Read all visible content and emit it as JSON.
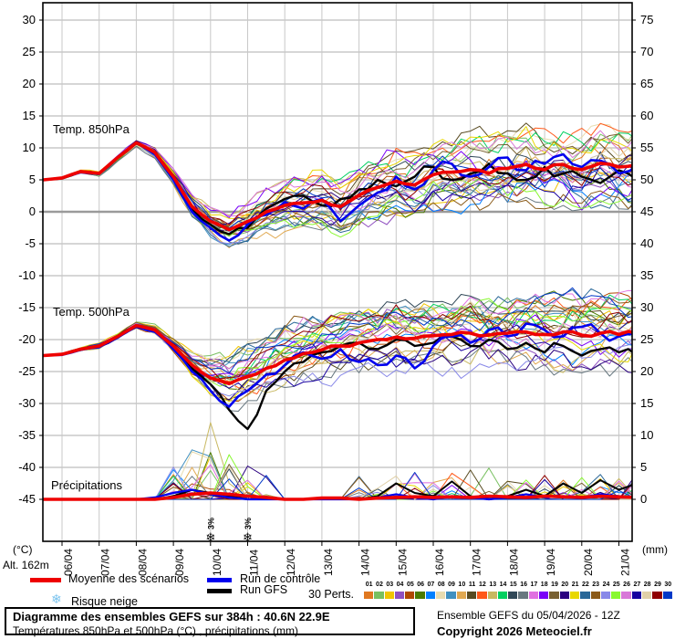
{
  "axes": {
    "left_unit": "(°C)",
    "right_unit": "(mm)",
    "alt_label": "Alt. 162m",
    "left_ticks": [
      30,
      25,
      20,
      15,
      10,
      5,
      0,
      -5,
      -10,
      -15,
      -20,
      -25,
      -30,
      -35,
      -40,
      -45
    ],
    "right_ticks": [
      75,
      70,
      65,
      60,
      55,
      50,
      45,
      40,
      35,
      30,
      25,
      20,
      15,
      10,
      5,
      0
    ],
    "x_dates": [
      "06/04",
      "07/04",
      "08/04",
      "09/04",
      "10/04",
      "11/04",
      "12/04",
      "13/04",
      "14/04",
      "15/04",
      "16/04",
      "17/04",
      "18/04",
      "19/04",
      "20/04",
      "21/04"
    ]
  },
  "panel_labels": {
    "t850": "Temp. 850hPa",
    "t500": "Temp. 500hPa",
    "precip": "Précipitations"
  },
  "legend": {
    "mean": {
      "label": "Moyenne des scénarios",
      "color": "#ee0000"
    },
    "control": {
      "label": "Run de contrôle",
      "color": "#0000ee"
    },
    "gfs": {
      "label": "Run GFS",
      "color": "#000000"
    },
    "perts_label": "30 Perts.",
    "snow_label": "Risque neige",
    "pert_numbers": [
      "01",
      "02",
      "03",
      "04",
      "05",
      "06",
      "07",
      "08",
      "09",
      "10",
      "11",
      "12",
      "13",
      "14",
      "15",
      "16",
      "17",
      "18",
      "19",
      "20",
      "21",
      "22",
      "23",
      "24",
      "25",
      "26",
      "27",
      "28",
      "29",
      "30"
    ],
    "pert_colors": [
      "#e07820",
      "#78c060",
      "#f0c400",
      "#9050c0",
      "#b04800",
      "#4a7a00",
      "#0080ff",
      "#e8dcb0",
      "#4090c0",
      "#e0a850",
      "#584a20",
      "#ff5818",
      "#c8b860",
      "#00d060",
      "#304858",
      "#687880",
      "#e070e0",
      "#7a00f8",
      "#786030",
      "#2a0080",
      "#e8d800",
      "#2a6898",
      "#8a5a18",
      "#8888e8",
      "#88f830",
      "#d878d8",
      "#1800a0",
      "#e0d0a8",
      "#900000",
      "#0038c8"
    ]
  },
  "snow_markers": [
    {
      "date": "10/04",
      "label": "3%",
      "day_index": 4
    },
    {
      "date": "11/04",
      "label": "3%",
      "day_index": 5
    }
  ],
  "title_box": {
    "line1": "Diagramme des ensembles GEFS sur 384h : 40.6N 22.9E",
    "line2": "Températures 850hPa et 500hPa (°C) , précipitations (mm)"
  },
  "footer_right": {
    "run_info": "Ensemble GEFS du 05/04/2026 - 12Z",
    "copyright": "Copyright 2026 Meteociel.fr"
  },
  "chart_data": {
    "type": "line",
    "title": "Diagramme des ensembles GEFS sur 384h : 40.6N 22.9E",
    "x_start": "05/04 12h",
    "x_end": "21/04 12h",
    "x_step_days": 0.5,
    "x_start_day_offset": -0.5,
    "ylim_left_celsius": [
      -45,
      30
    ],
    "ylim_right_mm": [
      0,
      75
    ],
    "grid": true,
    "members_count": 30,
    "panels": {
      "t850": {
        "label": "Temp. 850hPa",
        "mean": [
          5.0,
          5.3,
          6.3,
          6.0,
          8.5,
          10.8,
          9.3,
          5.5,
          0.8,
          -1.5,
          -2.8,
          -1.5,
          0.0,
          1.0,
          1.4,
          1.8,
          0.8,
          2.6,
          3.8,
          4.8,
          4.2,
          5.8,
          6.2,
          6.6,
          6.0,
          6.8,
          7.4,
          6.6,
          7.4,
          6.6,
          7.6,
          7.0,
          7.4
        ],
        "control": [
          5.0,
          5.3,
          6.2,
          5.9,
          8.6,
          10.9,
          9.0,
          5.0,
          0.0,
          -2.5,
          -4.5,
          -2.0,
          -0.5,
          1.5,
          0.5,
          2.0,
          -1.5,
          1.0,
          3.0,
          5.5,
          3.5,
          6.5,
          7.5,
          5.5,
          7.0,
          8.5,
          6.5,
          7.5,
          9.0,
          7.0,
          8.0,
          6.0,
          7.0
        ],
        "gfs": [
          5.0,
          5.2,
          6.3,
          6.0,
          8.4,
          10.7,
          9.2,
          5.2,
          0.5,
          -2.0,
          -3.5,
          -2.5,
          0.5,
          2.0,
          2.5,
          1.0,
          2.0,
          3.5,
          5.0,
          4.0,
          5.5,
          7.0,
          5.0,
          6.0,
          7.5,
          6.0,
          5.0,
          7.0,
          6.0,
          5.5,
          4.5,
          6.5,
          5.0
        ],
        "spread_half": [
          0,
          0.2,
          0.4,
          0.5,
          0.5,
          0.5,
          0.8,
          1.2,
          1.8,
          2.2,
          2.8,
          3.0,
          3.2,
          3.5,
          3.8,
          4.0,
          4.2,
          4.2,
          4.5,
          4.5,
          4.8,
          5.0,
          5.0,
          5.2,
          5.2,
          5.2,
          5.5,
          5.5,
          5.5,
          5.5,
          5.5,
          5.5,
          5.5
        ]
      },
      "t500": {
        "label": "Temp. 500hPa",
        "mean": [
          -22.5,
          -22.3,
          -21.5,
          -21.0,
          -19.5,
          -17.8,
          -18.5,
          -21.0,
          -24.0,
          -26.0,
          -26.9,
          -25.8,
          -24.5,
          -23.2,
          -22.2,
          -21.6,
          -21.0,
          -20.5,
          -20.0,
          -19.6,
          -19.8,
          -19.4,
          -19.2,
          -19.0,
          -19.3,
          -19.0,
          -18.8,
          -19.2,
          -18.8,
          -19.3,
          -19.0,
          -19.2,
          -19.0
        ],
        "control": [
          -22.5,
          -22.4,
          -21.6,
          -21.2,
          -19.6,
          -17.9,
          -18.8,
          -21.5,
          -25.0,
          -28.0,
          -30.5,
          -28.0,
          -25.5,
          -24.0,
          -22.0,
          -23.0,
          -21.5,
          -23.5,
          -24.0,
          -22.5,
          -24.5,
          -21.0,
          -19.5,
          -20.5,
          -18.5,
          -19.5,
          -17.5,
          -18.5,
          -19.5,
          -18.0,
          -19.0,
          -19.5,
          -19.0
        ],
        "gfs": [
          -22.5,
          -22.3,
          -21.5,
          -21.1,
          -19.4,
          -17.8,
          -18.6,
          -21.2,
          -24.5,
          -27.0,
          -31.0,
          -34.0,
          -28.0,
          -25.0,
          -23.5,
          -22.0,
          -21.0,
          -20.5,
          -21.5,
          -20.0,
          -21.0,
          -20.5,
          -19.5,
          -21.0,
          -20.0,
          -21.5,
          -20.5,
          -22.0,
          -21.0,
          -22.5,
          -21.5,
          -22.0,
          -22.5
        ],
        "spread_half": [
          0,
          0.2,
          0.4,
          0.5,
          0.5,
          0.6,
          0.8,
          1.2,
          2.0,
          3.0,
          4.0,
          4.5,
          5.0,
          5.0,
          4.8,
          4.5,
          4.5,
          4.5,
          4.5,
          4.5,
          4.5,
          4.5,
          4.5,
          5.0,
          5.0,
          5.0,
          5.0,
          5.5,
          5.5,
          5.5,
          5.5,
          5.5,
          5.5
        ]
      },
      "precip": {
        "label": "Précipitations",
        "mean": [
          0,
          0,
          0,
          0,
          0,
          0,
          0,
          0.3,
          0.8,
          1.0,
          0.8,
          0.5,
          0.3,
          0,
          0,
          0.2,
          0.2,
          0,
          0.2,
          0.3,
          0.4,
          0.3,
          0.4,
          0.3,
          0.5,
          0.4,
          0.3,
          0.5,
          0.4,
          0.3,
          0.5,
          0.4,
          0.3
        ],
        "control": [
          0,
          0,
          0,
          0,
          0,
          0,
          0.3,
          1.0,
          1.5,
          0.8,
          0.3,
          0,
          0,
          0,
          0,
          0,
          0,
          0,
          0.3,
          0.8,
          0.3,
          0,
          0.5,
          0.3,
          0,
          0.3,
          0.8,
          0.3,
          0.5,
          0.3,
          0.8,
          0.5,
          0.3
        ],
        "gfs": [
          0,
          0,
          0,
          0,
          0,
          0,
          0,
          0.5,
          1.5,
          1.0,
          0.5,
          0,
          0,
          0,
          0,
          0,
          0,
          0,
          0.5,
          2.5,
          1.0,
          0.5,
          2.8,
          0.5,
          0,
          0.5,
          1.5,
          0.5,
          2.5,
          1.0,
          3.0,
          1.5,
          2.5
        ],
        "max_member_spike_mm": 12
      }
    }
  }
}
